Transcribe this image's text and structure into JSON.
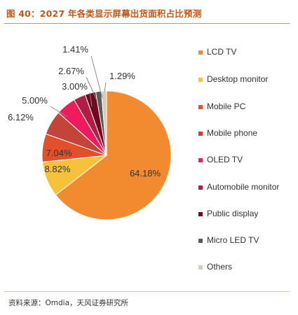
{
  "figure": {
    "title": "图 40：2027 年各类显示屏幕出货面积占比预测",
    "source": "资料来源：Omdia，天风证券研究所"
  },
  "chart_data": {
    "type": "pie",
    "labels": [
      "LCD TV",
      "Desktop monitor",
      "Mobile PC",
      "Mobile phone",
      "OLED TV",
      "Automobile monitor",
      "Public display",
      "Micro LED TV",
      "Others"
    ],
    "values": [
      64.18,
      8.82,
      7.04,
      6.12,
      5.0,
      3.0,
      2.67,
      1.41,
      1.29
    ],
    "data_labels": [
      "64.18%",
      "8.82%",
      "7.04%",
      "6.12%",
      "5.00%",
      "3.00%",
      "2.67%",
      "1.41%",
      "1.29%"
    ],
    "colors": [
      "#f28a30",
      "#f7c23a",
      "#e34f2a",
      "#c4443a",
      "#ee1c5e",
      "#b01e45",
      "#6e0c1e",
      "#5a5a5a",
      "#d9cbb8"
    ],
    "legend_position": "right",
    "direction": "clockwise from top"
  }
}
